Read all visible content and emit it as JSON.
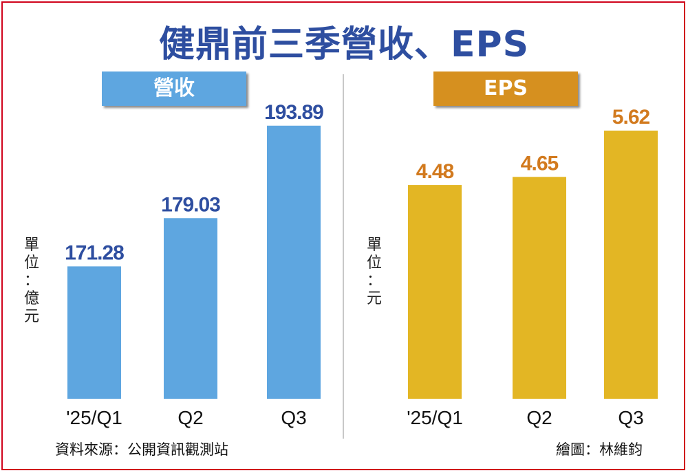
{
  "title": "健鼎前三季營收、EPS",
  "unit_left_chars": [
    "單",
    "位",
    "：",
    "億",
    "元"
  ],
  "unit_right_chars": [
    "單",
    "位",
    "：",
    "元"
  ],
  "source": "資料來源：公開資訊觀測站",
  "credit": "繪圖：林維鈞",
  "colors": {
    "title": "#2e4ea0",
    "revenue_bar": "#5ea6e0",
    "revenue_label": "#2e4ea0",
    "eps_bar": "#e3b624",
    "eps_label": "#d27a1e",
    "frame": "#d0021b"
  },
  "chart_data": [
    {
      "type": "bar",
      "title": "營收",
      "categories": [
        "'25/Q1",
        "Q2",
        "Q3"
      ],
      "values": [
        171.28,
        179.03,
        193.89
      ],
      "value_labels": [
        "171.28",
        "179.03",
        "193.89"
      ],
      "ylabel": "單位：億元",
      "baseline": 150
    },
    {
      "type": "bar",
      "title": "EPS",
      "categories": [
        "'25/Q1",
        "Q2",
        "Q3"
      ],
      "values": [
        4.48,
        4.65,
        5.62
      ],
      "value_labels": [
        "4.48",
        "4.65",
        "5.62"
      ],
      "ylabel": "單位：元",
      "baseline": 0
    }
  ]
}
